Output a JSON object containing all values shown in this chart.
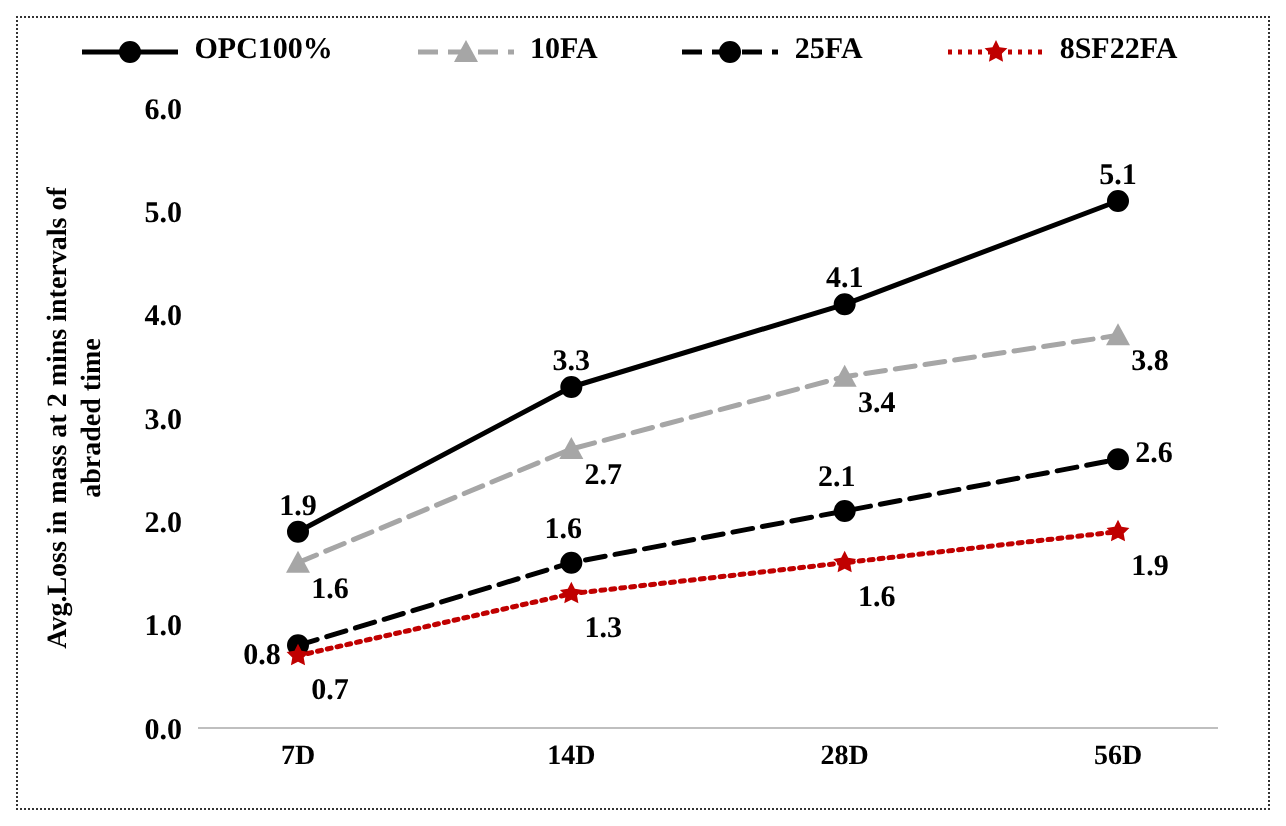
{
  "chart_data": {
    "type": "line",
    "ylabel": "Avg.Loss in mass at 2 mins intervals of abraded time",
    "categories": [
      "7D",
      "14D",
      "28D",
      "56D"
    ],
    "ylim": [
      0,
      6
    ],
    "yticks": [
      {
        "value": 0,
        "label": "0.0"
      },
      {
        "value": 1,
        "label": "1.0"
      },
      {
        "value": 2,
        "label": "2.0"
      },
      {
        "value": 3,
        "label": "3.0"
      },
      {
        "value": 4,
        "label": "4.0"
      },
      {
        "value": 5,
        "label": "5.0"
      },
      {
        "value": 6,
        "label": "6.0"
      }
    ],
    "grid": false,
    "legend": "top",
    "data_labels": true,
    "series": [
      {
        "name": "OPC100%",
        "color": "#000000",
        "values": [
          1.9,
          3.3,
          4.1,
          5.1
        ],
        "marker": "circle",
        "line_style": "solid"
      },
      {
        "name": "10FA",
        "color": "#a6a6a6",
        "values": [
          1.6,
          2.7,
          3.4,
          3.8
        ],
        "marker": "triangle",
        "line_style": "dashed"
      },
      {
        "name": "25FA",
        "color": "#000000",
        "values": [
          0.8,
          1.6,
          2.1,
          2.6
        ],
        "marker": "circle",
        "line_style": "dashed"
      },
      {
        "name": "8SF22FA",
        "color": "#c00000",
        "values": [
          0.7,
          1.3,
          1.6,
          1.9
        ],
        "marker": "star",
        "line_style": "dotted"
      }
    ]
  }
}
